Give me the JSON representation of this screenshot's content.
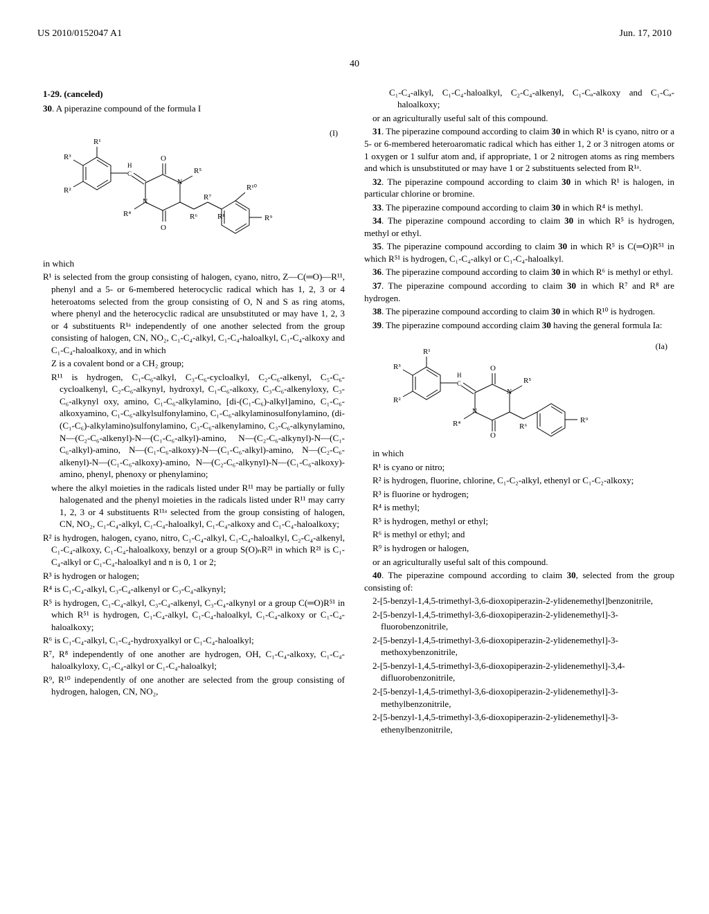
{
  "header": {
    "left": "US 2010/0152047 A1",
    "right": "Jun. 17, 2010"
  },
  "page_number": "40",
  "formula_I": {
    "label": "(I)",
    "labels": [
      "R¹",
      "R²",
      "R³",
      "R⁴",
      "R⁵",
      "R⁶",
      "R⁷",
      "R⁸",
      "R⁹",
      "R¹⁰",
      "O",
      "O",
      "N",
      "N",
      "H",
      "C"
    ]
  },
  "formula_Ia": {
    "label": "(Ia)",
    "labels": [
      "R¹",
      "R²",
      "R³",
      "R⁴",
      "R⁵",
      "R⁶",
      "R⁹",
      "O",
      "O",
      "N",
      "N",
      "H",
      "C"
    ]
  },
  "claims": {
    "c1_29": "1-29. (canceled)",
    "c30_lead": "30. A piperazine compound of the formula I",
    "in_which": "in which",
    "R1": "R¹ is selected from the group consisting of halogen, cyano, nitro, Z—C(═O)—R¹¹, phenyl and a 5- or 6-membered heterocyclic radical which has 1, 2, 3 or 4 heteroatoms selected from the group consisting of O, N and S as ring atoms, where phenyl and the heterocyclic radical are unsubstituted or may have 1, 2, 3 or 4 substituents R¹ᵃ independently of one another selected from the group consisting of halogen, CN, NO₂, C₁-C₄-alkyl, C₁-C₄-haloalkyl, C₁-C₄-alkoxy and C₁-C₄-haloalkoxy, and in which",
    "Z": "Z is a covalent bond or a CH₂ group;",
    "R11": "R¹¹ is hydrogen, C₁-C₆-alkyl, C₃-C₆-cycloalkyl, C₂-C₆-alkenyl, C₅-C₆-cycloalkenyl, C₂-C₆-alkynyl, hydroxyl, C₁-C₆-alkoxy, C₃-C₆-alkenyloxy, C₃-C₆-alkynyl oxy, amino, C₁-C₆-alkylamino, [di-(C₁-C₆)-alkyl]amino, C₁-C₆-alkoxyamino, C₁-C₆-alkylsulfonylamino, C₁-C₆-alkylaminosulfonylamino, (di-(C₁-C₆)-alkylamino)sulfonylamino, C₃-C₆-alkenylamino, C₃-C₆-alkynylamino, N—(C₂-C₆-alkenyl)-N—(C₁-C₆-alkyl)-amino, N—(C₂-C₆-alkynyl)-N—(C₁-C₆-alkyl)-amino, N—(C₁-C₆-alkoxy)-N—(C₁-C₆-alkyl)-amino, N—(C₂-C₆-alkenyl)-N—(C₁-C₆-alkoxy)-amino, N—(C₂-C₆-alkynyl)-N—(C₁-C₆-alkoxy)-amino, phenyl, phenoxy or phenylamino;",
    "R11_where": "where the alkyl moieties in the radicals listed under R¹¹ may be partially or fully halogenated and the phenyl moieties in the radicals listed under R¹¹ may carry 1, 2, 3 or 4 substituents R¹¹ᵃ selected from the group consisting of halogen, CN, NO₂, C₁-C₄-alkyl, C₁-C₄-haloalkyl, C₁-C₄-alkoxy and C₁-C₄-haloalkoxy;",
    "R2": "R² is hydrogen, halogen, cyano, nitro, C₁-C₄-alkyl, C₁-C₄-haloalkyl, C₂-C₄-alkenyl, C₁-C₄-alkoxy, C₁-C₄-haloalkoxy, benzyl or a group S(O)ₙR²¹ in which R²¹ is C₁-C₄-alkyl or C₁-C₄-haloalkyl and n is 0, 1 or 2;",
    "R3": "R³ is hydrogen or halogen;",
    "R4": "R⁴ is C₁-C₄-alkyl, C₃-C₄-alkenyl or C₃-C₄-alkynyl;",
    "R5": "R⁵ is hydrogen, C₁-C₄-alkyl, C₃-C₄-alkenyl, C₃-C₄-alkynyl or a group C(═O)R⁵¹ in which R⁵¹ is hydrogen, C₁-C₄-alkyl, C₁-C₄-haloalkyl, C₁-C₄-alkoxy or C₁-C₄-haloalkoxy;",
    "R6": "R⁶ is C₁-C₄-alkyl, C₁-C₄-hydroxyalkyl or C₁-C₄-haloalkyl;",
    "R7_R8": "R⁷, R⁸ independently of one another are hydrogen, OH, C₁-C₄-alkoxy, C₁-C₄-haloalkyloxy, C₁-C₄-alkyl or C₁-C₄-haloalkyl;",
    "R9_R10": "R⁹, R¹⁰ independently of one another are selected from the group consisting of hydrogen, halogen, CN, NO₂,",
    "R9_R10_cont": "C₁-C₄-alkyl, C₁-C₄-haloalkyl, C₂-C₄-alkenyl, C₁-Cₐ-alkoxy and C₁-Cₐ-haloalkoxy;",
    "salt": "or an agriculturally useful salt of this compound.",
    "c31": "31. The piperazine compound according to claim 30 in which R¹ is cyano, nitro or a 5- or 6-membered heteroaromatic radical which has either 1, 2 or 3 nitrogen atoms or 1 oxygen or 1 sulfur atom and, if appropriate, 1 or 2 nitrogen atoms as ring members and which is unsubstituted or may have 1 or 2 substituents selected from R¹ᵃ.",
    "c32": "32. The piperazine compound according to claim 30 in which R¹ is halogen, in particular chlorine or bromine.",
    "c33": "33. The piperazine compound according to claim 30 in which R⁴ is methyl.",
    "c34": "34. The piperazine compound according to claim 30 in which R⁵ is hydrogen, methyl or ethyl.",
    "c35": "35. The piperazine compound according to claim 30 in which R⁵ is C(═O)R⁵¹ in which R⁵¹ is hydrogen, C₁-C₄-alkyl or C₁-C₄-haloalkyl.",
    "c36": "36. The piperazine compound according to claim 30 in which R⁶ is methyl or ethyl.",
    "c37": "37. The piperazine compound according to claim 30 in which R⁷ and R⁸ are hydrogen.",
    "c38": "38. The piperazine compound according to claim 30 in which R¹⁰ is hydrogen.",
    "c39": "39. The piperazine compound according claim 30 having the general formula Ia:",
    "Ia_in_which": "in which",
    "Ia_R1": "R¹ is cyano or nitro;",
    "Ia_R2": "R² is hydrogen, fluorine, chlorine, C₁-C₂-alkyl, ethenyl or C₁-C₂-alkoxy;",
    "Ia_R3": "R³ is fluorine or hydrogen;",
    "Ia_R4": "R⁴ is methyl;",
    "Ia_R5": "R⁵ is hydrogen, methyl or ethyl;",
    "Ia_R6": "R⁶ is methyl or ethyl; and",
    "Ia_R9": "R⁹ is hydrogen or halogen,",
    "Ia_salt": "or an agriculturally useful salt of this compound.",
    "c40_lead": "40. The piperazine compound according to claim 30, selected from the group consisting of:",
    "c40_items": [
      "2-[5-benzyl-1,4,5-trimethyl-3,6-dioxopiperazin-2-ylidenemethyl]benzonitrile,",
      "2-[5-benzyl-1,4,5-trimethyl-3,6-dioxopiperazin-2-ylidenemethyl]-3-fluorobenzonitrile,",
      "2-[5-benzyl-1,4,5-trimethyl-3,6-dioxopiperazin-2-ylidenemethyl]-3-methoxybenzonitrile,",
      "2-[5-benzyl-1,4,5-trimethyl-3,6-dioxopiperazin-2-ylidenemethyl]-3,4-difluorobenzonitrile,",
      "2-[5-benzyl-1,4,5-trimethyl-3,6-dioxopiperazin-2-ylidenemethyl]-3-methylbenzonitrile,",
      "2-[5-benzyl-1,4,5-trimethyl-3,6-dioxopiperazin-2-ylidenemethyl]-3-ethenylbenzonitrile,"
    ]
  }
}
